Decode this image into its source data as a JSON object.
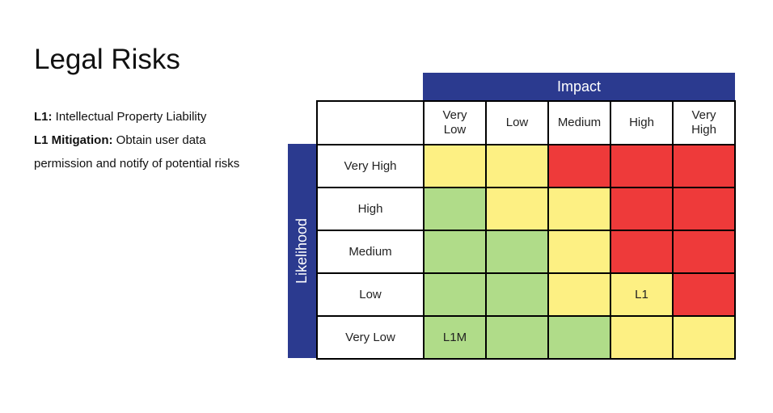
{
  "title": "Legal Risks",
  "notes": {
    "l1_label": "L1:",
    "l1_text": " Intellectual Property Liability",
    "mitigation_label": "L1 Mitigation:",
    "mitigation_text": " Obtain user data permission and notify of potential risks"
  },
  "matrix": {
    "impact_label": "Impact",
    "likelihood_label": "Likelihood",
    "impact_levels": [
      "Very\nLow",
      "Low",
      "Medium",
      "High",
      "Very\nHigh"
    ],
    "likelihood_levels": [
      "Very High",
      "High",
      "Medium",
      "Low",
      "Very Low"
    ],
    "cells": [
      [
        {
          "level": "yellow",
          "text": ""
        },
        {
          "level": "yellow",
          "text": ""
        },
        {
          "level": "red",
          "text": ""
        },
        {
          "level": "red",
          "text": ""
        },
        {
          "level": "red",
          "text": ""
        }
      ],
      [
        {
          "level": "green",
          "text": ""
        },
        {
          "level": "yellow",
          "text": ""
        },
        {
          "level": "yellow",
          "text": ""
        },
        {
          "level": "red",
          "text": ""
        },
        {
          "level": "red",
          "text": ""
        }
      ],
      [
        {
          "level": "green",
          "text": ""
        },
        {
          "level": "green",
          "text": ""
        },
        {
          "level": "yellow",
          "text": ""
        },
        {
          "level": "red",
          "text": ""
        },
        {
          "level": "red",
          "text": ""
        }
      ],
      [
        {
          "level": "green",
          "text": ""
        },
        {
          "level": "green",
          "text": ""
        },
        {
          "level": "yellow",
          "text": ""
        },
        {
          "level": "yellow",
          "text": "L1"
        },
        {
          "level": "red",
          "text": ""
        }
      ],
      [
        {
          "level": "green",
          "text": "L1M"
        },
        {
          "level": "green",
          "text": ""
        },
        {
          "level": "green",
          "text": ""
        },
        {
          "level": "yellow",
          "text": ""
        },
        {
          "level": "yellow",
          "text": ""
        }
      ]
    ]
  },
  "colors": {
    "header_blue": "#2b3a8f",
    "green": "#b0dc89",
    "yellow": "#fdf083",
    "red": "#ee3a3a"
  }
}
